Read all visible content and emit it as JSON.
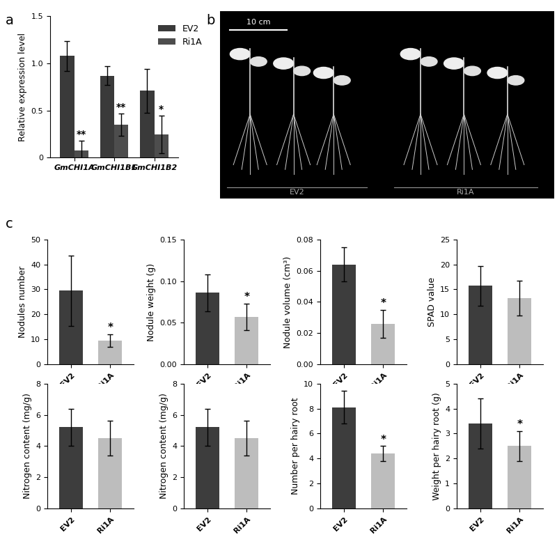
{
  "panel_labels": [
    "a",
    "b",
    "c"
  ],
  "photo": {
    "scale_bar": "10 cm",
    "groups": [
      "EV2",
      "Ri1A"
    ]
  },
  "chart_data": [
    {
      "type": "bar",
      "ylabel": "Relative expression level",
      "categories": [
        "GmCHI1A",
        "GmCHI1B1",
        "GmCHI1B2"
      ],
      "series": [
        {
          "name": "EV2",
          "color": "#3a3a3a",
          "values": [
            1.08,
            0.87,
            0.71
          ],
          "errors": [
            0.16,
            0.1,
            0.23
          ]
        },
        {
          "name": "Ri1A",
          "color": "#4d4d4d",
          "values": [
            0.08,
            0.35,
            0.25
          ],
          "errors": [
            0.1,
            0.12,
            0.2
          ],
          "significance": [
            "**",
            "**",
            "*"
          ]
        }
      ],
      "ylim": [
        0,
        1.5
      ],
      "yticks": [
        0,
        0.5,
        {
          "value": 1,
          "label": "1.0"
        },
        1.5
      ],
      "legend": "upper right"
    },
    {
      "type": "bar",
      "ylabel": "Nodules number",
      "categories": [
        "EV2",
        "Ri1A"
      ],
      "values": [
        29.5,
        9.5
      ],
      "errors": [
        14,
        2.5
      ],
      "significance": [
        null,
        "*"
      ],
      "colors": [
        "#3d3d3d",
        "#bdbdbd"
      ],
      "ylim": [
        0,
        50
      ],
      "yticks": [
        0,
        10,
        20,
        30,
        40,
        50
      ]
    },
    {
      "type": "bar",
      "ylabel": "Nodule weight (g)",
      "categories": [
        "EV2",
        "Ri1A"
      ],
      "values": [
        0.086,
        0.057
      ],
      "errors": [
        0.022,
        0.016
      ],
      "significance": [
        null,
        "*"
      ],
      "colors": [
        "#3d3d3d",
        "#bdbdbd"
      ],
      "ylim": [
        0,
        0.15
      ],
      "yticks": [
        {
          "value": 0,
          "label": "0.00"
        },
        0.05,
        {
          "value": 0.1,
          "label": "0.10"
        },
        0.15
      ]
    },
    {
      "type": "bar",
      "ylabel": "Nodule volume (cm³)",
      "categories": [
        "EV2",
        "Ri1A"
      ],
      "values": [
        0.064,
        0.026
      ],
      "errors": [
        0.011,
        0.009
      ],
      "significance": [
        null,
        "*"
      ],
      "colors": [
        "#3d3d3d",
        "#bdbdbd"
      ],
      "ylim": [
        0,
        0.08
      ],
      "yticks": [
        {
          "value": 0,
          "label": "0.00"
        },
        0.02,
        0.04,
        0.06,
        0.08
      ]
    },
    {
      "type": "bar",
      "ylabel": "SPAD value",
      "categories": [
        "EV2",
        "Ri1A"
      ],
      "values": [
        15.7,
        13.3
      ],
      "errors": [
        4,
        3.5
      ],
      "colors": [
        "#3d3d3d",
        "#bdbdbd"
      ],
      "ylim": [
        0,
        25
      ],
      "yticks": [
        0,
        5,
        10,
        15,
        20,
        25
      ]
    },
    {
      "type": "bar",
      "ylabel": "Nitrogen content (mg/g)",
      "categories": [
        "EV2",
        "Ri1A"
      ],
      "values": [
        5.2,
        4.5
      ],
      "errors": [
        1.2,
        1.1
      ],
      "colors": [
        "#3d3d3d",
        "#bdbdbd"
      ],
      "ylim": [
        0,
        8
      ],
      "yticks": [
        0,
        2,
        4,
        6,
        8
      ]
    },
    {
      "type": "bar",
      "ylabel": "Nitrogen content (mg/g)",
      "categories": [
        "EV2",
        "Ri1A"
      ],
      "values": [
        5.2,
        4.5
      ],
      "errors": [
        1.2,
        1.1
      ],
      "colors": [
        "#3d3d3d",
        "#bdbdbd"
      ],
      "ylim": [
        0,
        8
      ],
      "yticks": [
        0,
        2,
        4,
        6,
        8
      ]
    },
    {
      "type": "bar",
      "ylabel": "Number per hairy root",
      "categories": [
        "EV2",
        "Ri1A"
      ],
      "values": [
        8.1,
        4.4
      ],
      "errors": [
        1.3,
        0.6
      ],
      "significance": [
        null,
        "*"
      ],
      "colors": [
        "#3d3d3d",
        "#bdbdbd"
      ],
      "ylim": [
        0,
        10
      ],
      "yticks": [
        0,
        2,
        4,
        6,
        8,
        10
      ]
    },
    {
      "type": "bar",
      "ylabel": "Weight per hairy root (g)",
      "categories": [
        "EV2",
        "Ri1A"
      ],
      "values": [
        3.4,
        2.5
      ],
      "errors": [
        1.0,
        0.6
      ],
      "significance": [
        null,
        "*"
      ],
      "colors": [
        "#3d3d3d",
        "#bdbdbd"
      ],
      "ylim": [
        0,
        5
      ],
      "yticks": [
        0,
        1,
        2,
        3,
        4,
        5
      ]
    }
  ]
}
